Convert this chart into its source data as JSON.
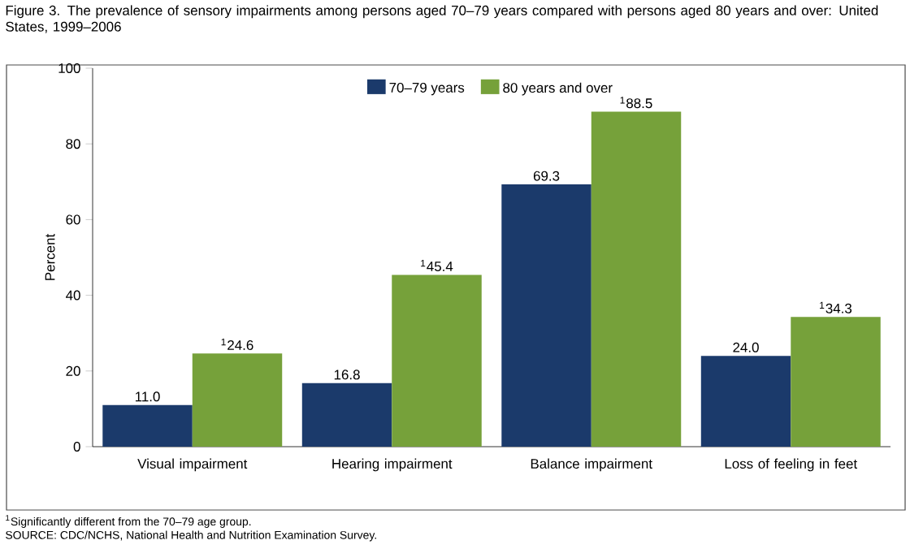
{
  "chart_data": {
    "type": "bar",
    "title": "Figure 3. The prevalence of sensory impairments among persons aged 70–79 years compared with persons aged 80 years and over: United States, 1999–2006",
    "ylabel": "Percent",
    "categories": [
      "Visual impairment",
      "Hearing impairment",
      "Balance impairment",
      "Loss of feeling in feet"
    ],
    "series": [
      {
        "name": "70–79 years",
        "color": "#1b3a6b",
        "values": [
          11.0,
          16.8,
          69.3,
          24.0
        ],
        "value_labels": [
          "11.0",
          "16.8",
          "69.3",
          "24.0"
        ]
      },
      {
        "name": "80 years and over",
        "color": "#76a13a",
        "values": [
          24.6,
          45.4,
          88.5,
          34.3
        ],
        "value_labels": [
          "$^{1}$24.6",
          "$^{1}$45.4",
          "$^{1}$88.5",
          "$^{1}$34.3"
        ]
      }
    ],
    "ylim": [
      0,
      100
    ],
    "yticks": [
      0,
      20,
      40,
      60,
      80,
      100
    ],
    "grid": false,
    "legend": "top",
    "annotations": [
      "$^{1}$Significantly different from the 70–79 age group.",
      "SOURCE: CDC/NCHS, National Health and Nutrition Examination Survey."
    ]
  }
}
